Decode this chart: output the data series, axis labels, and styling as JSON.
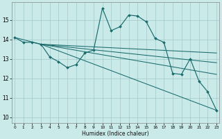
{
  "background_color": "#caeaea",
  "grid_color": "#a0c8c8",
  "line_color": "#1a6b6b",
  "xlabel": "Humidex (Indice chaleur)",
  "ylim": [
    9.7,
    15.9
  ],
  "xlim": [
    -0.3,
    23.3
  ],
  "series": [
    {
      "x": [
        0,
        1,
        2,
        3,
        4,
        5,
        6,
        7,
        8,
        9,
        10,
        11,
        12,
        13,
        14,
        15,
        16,
        17,
        18,
        19,
        20,
        21,
        22,
        23
      ],
      "y": [
        14.1,
        13.85,
        13.85,
        13.75,
        13.1,
        12.85,
        12.55,
        12.7,
        13.3,
        13.45,
        15.6,
        14.45,
        14.65,
        15.25,
        15.2,
        14.9,
        14.05,
        13.85,
        12.25,
        12.2,
        13.0,
        11.85,
        11.3,
        10.35
      ],
      "markers": true
    },
    {
      "x": [
        0,
        3,
        23
      ],
      "y": [
        14.1,
        13.75,
        13.3
      ],
      "markers": false
    },
    {
      "x": [
        3,
        23
      ],
      "y": [
        13.75,
        12.8
      ],
      "markers": false
    },
    {
      "x": [
        3,
        23
      ],
      "y": [
        13.75,
        12.2
      ],
      "markers": false
    },
    {
      "x": [
        3,
        23
      ],
      "y": [
        13.75,
        10.35
      ],
      "markers": false
    }
  ]
}
